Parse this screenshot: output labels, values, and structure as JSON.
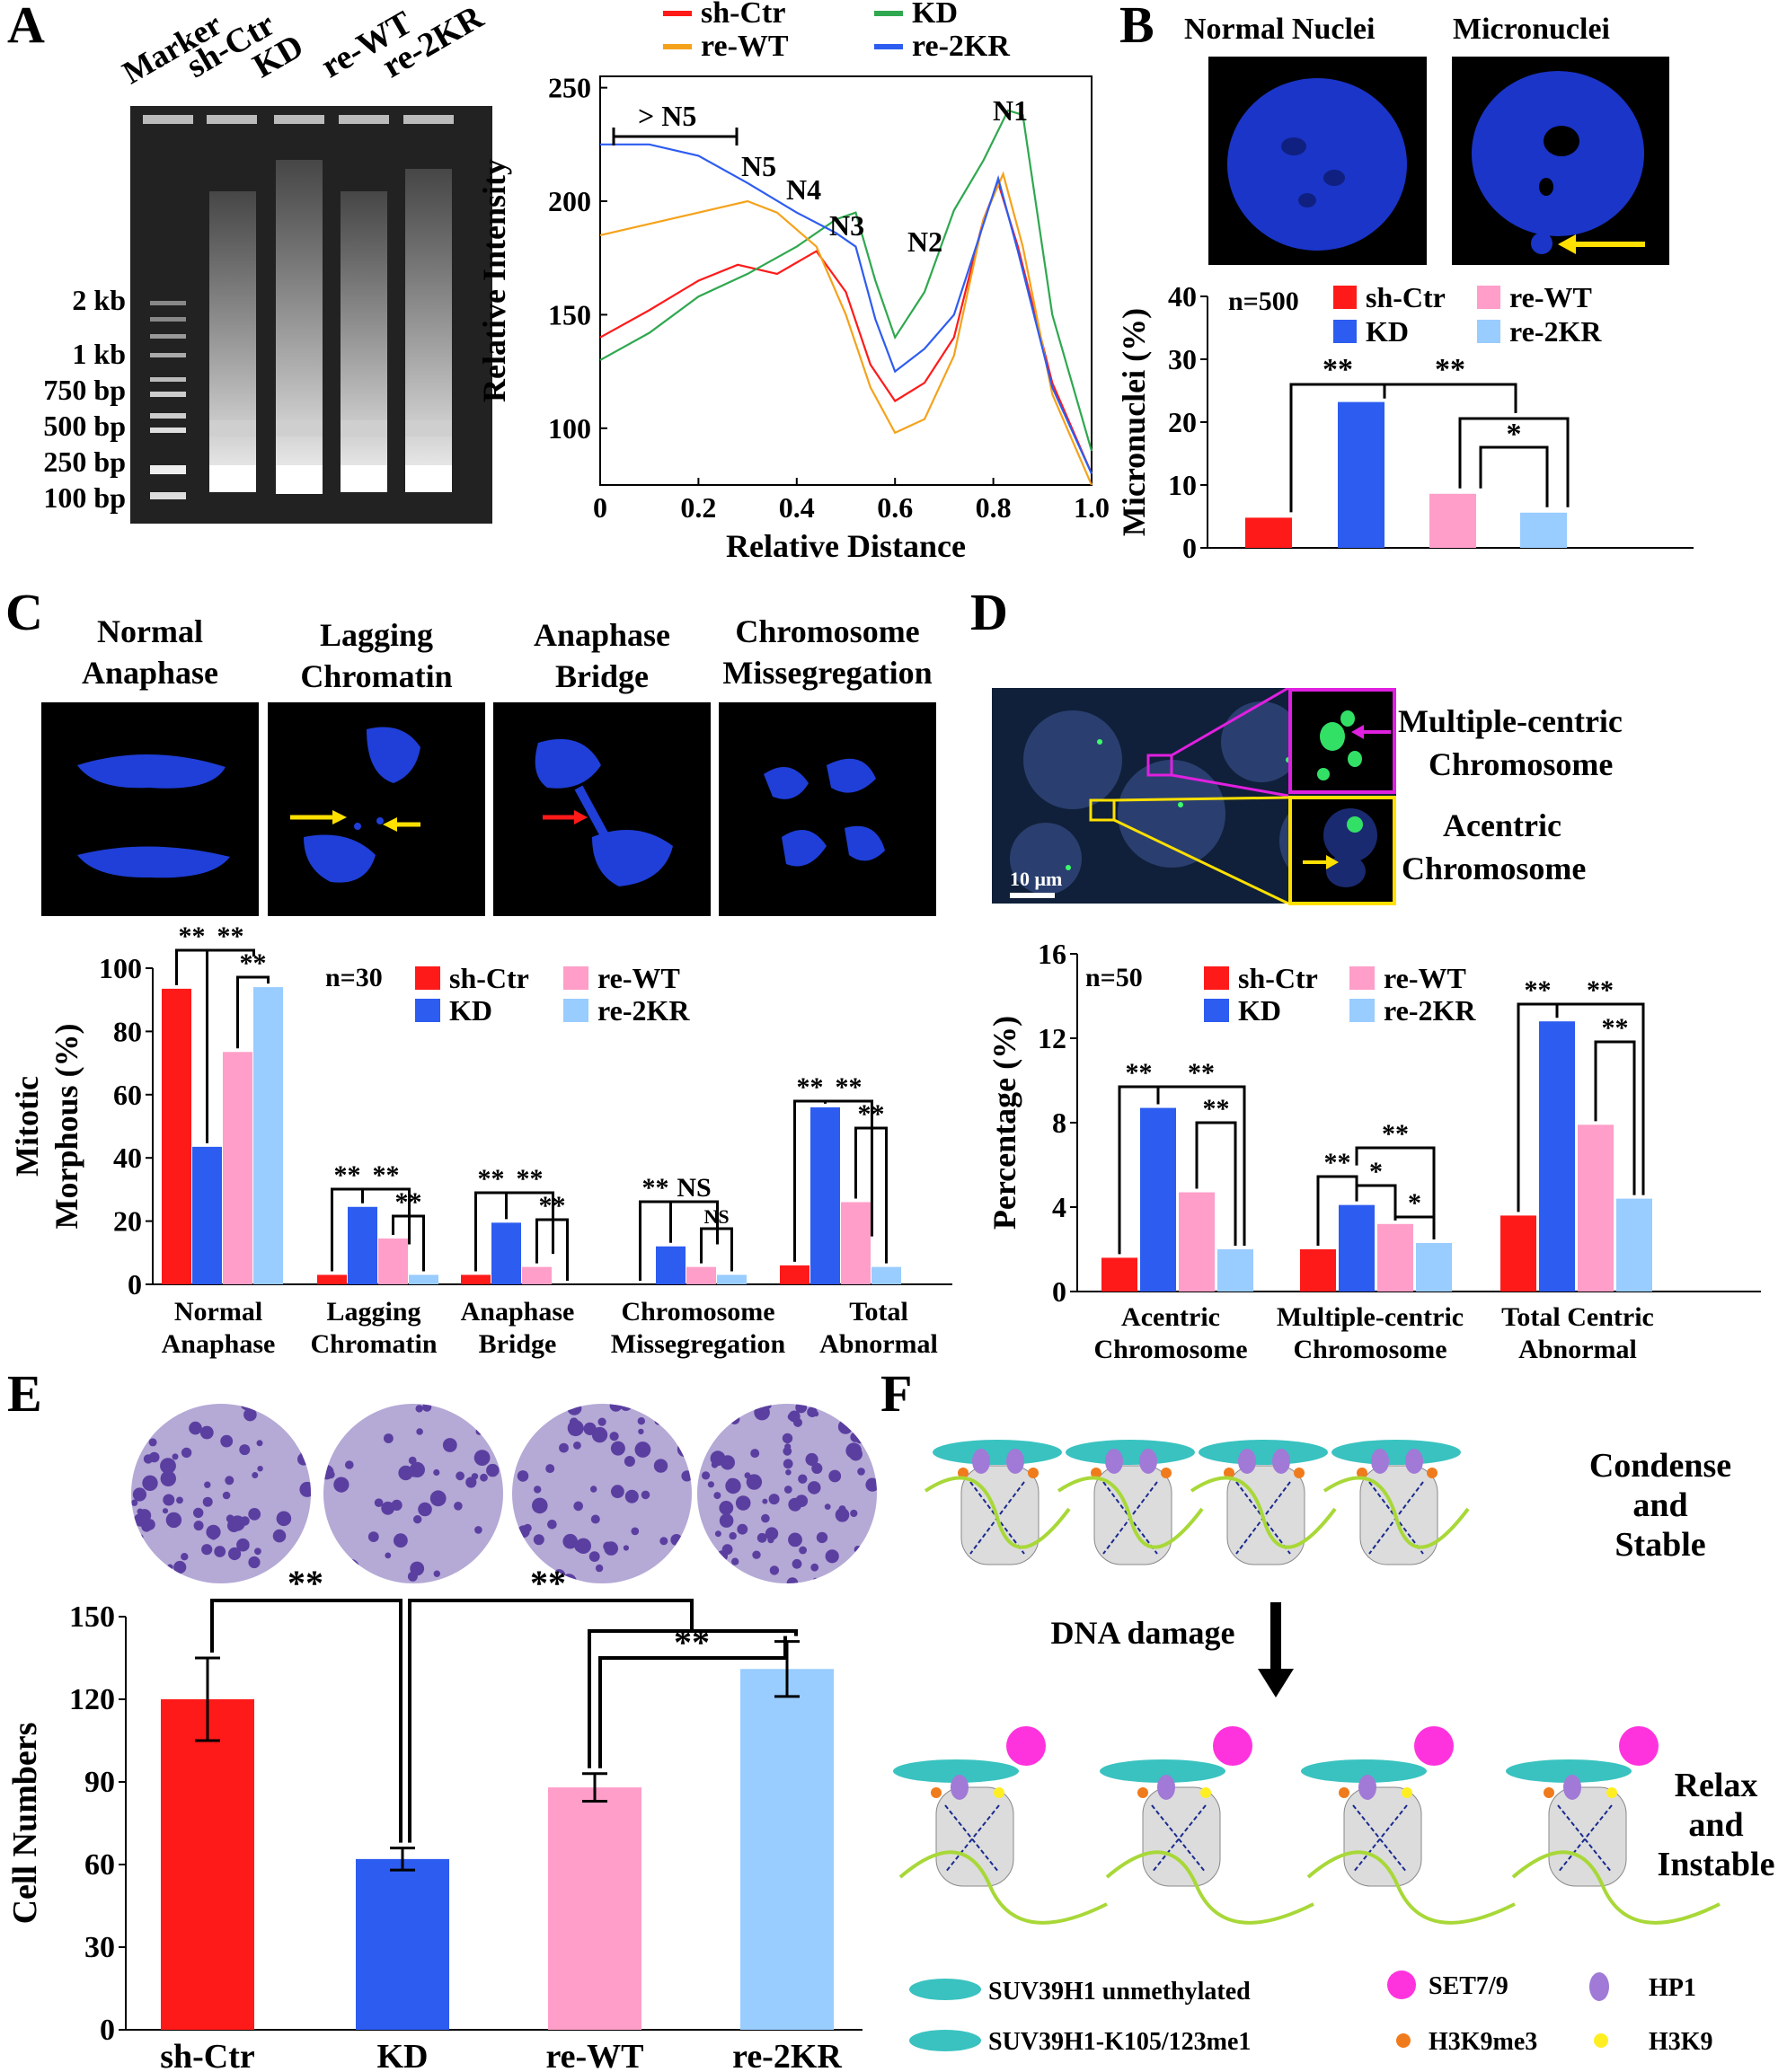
{
  "colors": {
    "shCtr": "#ff1a1a",
    "KD": "#2d5cf0",
    "reWT": "#ff9ec8",
    "re2KR": "#99ccff",
    "lineKD": "#2fa84f",
    "lineReWT": "#f5a21b"
  },
  "panels": {
    "A": "A",
    "B": "B",
    "C": "C",
    "D": "D",
    "E": "E",
    "F": "F"
  },
  "groups": [
    "sh-Ctr",
    "KD",
    "re-WT",
    "re-2KR"
  ],
  "panelA": {
    "gel_lanes": [
      "Marker",
      "sh-Ctr",
      "KD",
      "re-WT",
      "re-2KR"
    ],
    "gel_sizes": [
      "2 kb",
      "1 kb",
      "750 bp",
      "500 bp",
      "250 bp",
      "100 bp"
    ],
    "peak_labels": [
      "> N5",
      "N5",
      "N4",
      "N3",
      "N2",
      "N1"
    ]
  },
  "panelB": {
    "image_titles": [
      "Normal Nuclei",
      "Micronuclei"
    ],
    "n_label": "n=500",
    "sig": [
      "**",
      "**",
      "*"
    ]
  },
  "panelC": {
    "image_titles": [
      "Normal Anaphase",
      "Lagging Chromatin",
      "Anaphase Bridge",
      "Chromosome Missegregation"
    ],
    "title_lines": [
      [
        "Normal",
        "Anaphase"
      ],
      [
        "Lagging",
        "Chromatin"
      ],
      [
        "Anaphase",
        "Bridge"
      ],
      [
        "Chromosome",
        "Missegregation"
      ]
    ],
    "n_label": "n=30",
    "sig": [
      "**",
      "**",
      "**",
      "**",
      "**",
      "**",
      "**",
      "**",
      "**",
      "**",
      "NS",
      "**",
      "**",
      "**"
    ]
  },
  "panelD": {
    "labels": [
      "Multiple-centric",
      "Chromosome",
      "Acentric",
      "Chromosome"
    ],
    "scale_bar": "10 μm",
    "n_label": "n=50",
    "sig": [
      "**",
      "**",
      "**",
      "**",
      "*",
      "**",
      "*",
      "**",
      "**",
      "**"
    ]
  },
  "panelE": {
    "sig": [
      "**",
      "**",
      "**"
    ]
  },
  "panelF": {
    "state_top": [
      "Condense",
      "and",
      "Stable"
    ],
    "arrow_label": "DNA damage",
    "state_bottom": [
      "Relax",
      "and",
      "Instable"
    ],
    "legend": [
      "SUV39H1 unmethylated",
      "SUV39H1-K105/123me1",
      "SET7/9",
      "H3K9me3",
      "HP1",
      "H3K9"
    ]
  },
  "chart_data": [
    {
      "id": "A-profile",
      "type": "line",
      "xlabel": "Relative Distance",
      "ylabel": "Relative Intensity",
      "xlim": [
        0,
        1.0
      ],
      "ylim": [
        75,
        255
      ],
      "xticks": [
        0,
        0.2,
        0.4,
        0.6,
        0.8,
        1.0
      ],
      "yticks": [
        100,
        150,
        200,
        250
      ],
      "legend": "top",
      "series": [
        {
          "name": "sh-Ctr",
          "x": [
            0,
            0.1,
            0.2,
            0.28,
            0.36,
            0.44,
            0.5,
            0.55,
            0.6,
            0.66,
            0.72,
            0.78,
            0.81,
            0.85,
            0.92,
            1.0
          ],
          "y": [
            140,
            152,
            165,
            172,
            168,
            178,
            160,
            128,
            112,
            120,
            140,
            192,
            208,
            180,
            120,
            80
          ]
        },
        {
          "name": "KD",
          "x": [
            0,
            0.1,
            0.2,
            0.3,
            0.4,
            0.48,
            0.52,
            0.56,
            0.6,
            0.66,
            0.72,
            0.78,
            0.83,
            0.86,
            0.92,
            1.0
          ],
          "y": [
            130,
            142,
            158,
            168,
            180,
            192,
            195,
            165,
            140,
            160,
            196,
            218,
            240,
            238,
            150,
            90
          ]
        },
        {
          "name": "re-WT",
          "x": [
            0,
            0.1,
            0.2,
            0.3,
            0.36,
            0.44,
            0.5,
            0.55,
            0.6,
            0.66,
            0.72,
            0.78,
            0.82,
            0.86,
            0.92,
            1.0
          ],
          "y": [
            185,
            190,
            195,
            200,
            195,
            180,
            150,
            118,
            98,
            104,
            132,
            192,
            212,
            180,
            115,
            75
          ]
        },
        {
          "name": "re-2KR",
          "x": [
            0,
            0.1,
            0.2,
            0.3,
            0.4,
            0.48,
            0.52,
            0.56,
            0.6,
            0.66,
            0.72,
            0.78,
            0.81,
            0.85,
            0.92,
            1.0
          ],
          "y": [
            225,
            225,
            220,
            208,
            195,
            186,
            180,
            148,
            125,
            135,
            150,
            190,
            210,
            178,
            118,
            80
          ]
        }
      ]
    },
    {
      "id": "B",
      "type": "bar",
      "ylabel": "Micronuclei (%)",
      "categories": [
        "sh-Ctr",
        "KD",
        "re-WT",
        "re-2KR"
      ],
      "values": [
        4.8,
        23.2,
        8.6,
        5.6
      ],
      "ylim": [
        0,
        40
      ],
      "yticks": [
        0,
        10,
        20,
        30,
        40
      ],
      "legend": "top"
    },
    {
      "id": "C",
      "type": "bar",
      "ylabel": "Mitotic Morphous (%)",
      "categories": [
        "Normal Anaphase",
        "Lagging Chromatin",
        "Anaphase Bridge",
        "Chromosome Missegregation",
        "Total Abnormal"
      ],
      "category_lines": [
        [
          "Normal",
          "Anaphase"
        ],
        [
          "Lagging",
          "Chromatin"
        ],
        [
          "Anaphase",
          "Bridge"
        ],
        [
          "Chromosome",
          "Missegregation"
        ],
        [
          "Total",
          "Abnormal"
        ]
      ],
      "series": [
        {
          "name": "sh-Ctr",
          "values": [
            93.5,
            3,
            3,
            0,
            6
          ]
        },
        {
          "name": "KD",
          "values": [
            43.5,
            24.5,
            19.5,
            12,
            56
          ]
        },
        {
          "name": "re-WT",
          "values": [
            73.5,
            14.5,
            5.5,
            5.5,
            26
          ]
        },
        {
          "name": "re-2KR",
          "values": [
            94,
            3,
            0,
            3,
            5.5
          ]
        }
      ],
      "ylim": [
        0,
        100
      ],
      "yticks": [
        0,
        20,
        40,
        60,
        80,
        100
      ],
      "legend": "top-right"
    },
    {
      "id": "D",
      "type": "bar",
      "ylabel": "Percentage (%)",
      "categories": [
        "Acentric Chromosome",
        "Multiple-centric Chromosome",
        "Total Centric Abnormal"
      ],
      "category_lines": [
        [
          "Acentric",
          "Chromosome"
        ],
        [
          "Multiple-centric",
          "Chromosome"
        ],
        [
          "Total Centric",
          "Abnormal"
        ]
      ],
      "series": [
        {
          "name": "sh-Ctr",
          "values": [
            1.6,
            2.0,
            3.6
          ]
        },
        {
          "name": "KD",
          "values": [
            8.7,
            4.1,
            12.8
          ]
        },
        {
          "name": "re-WT",
          "values": [
            4.7,
            3.2,
            7.9
          ]
        },
        {
          "name": "re-2KR",
          "values": [
            2.0,
            2.3,
            4.4
          ]
        }
      ],
      "ylim": [
        0,
        16
      ],
      "yticks": [
        0,
        4,
        8,
        12,
        16
      ],
      "legend": "top-left"
    },
    {
      "id": "E",
      "type": "bar",
      "ylabel": "Cell Numbers",
      "categories": [
        "sh-Ctr",
        "KD",
        "re-WT",
        "re-2KR"
      ],
      "values": [
        120,
        62,
        88,
        131
      ],
      "errors": [
        15,
        4,
        5,
        10
      ],
      "ylim": [
        0,
        150
      ],
      "yticks": [
        0,
        30,
        60,
        90,
        120,
        150
      ]
    }
  ]
}
